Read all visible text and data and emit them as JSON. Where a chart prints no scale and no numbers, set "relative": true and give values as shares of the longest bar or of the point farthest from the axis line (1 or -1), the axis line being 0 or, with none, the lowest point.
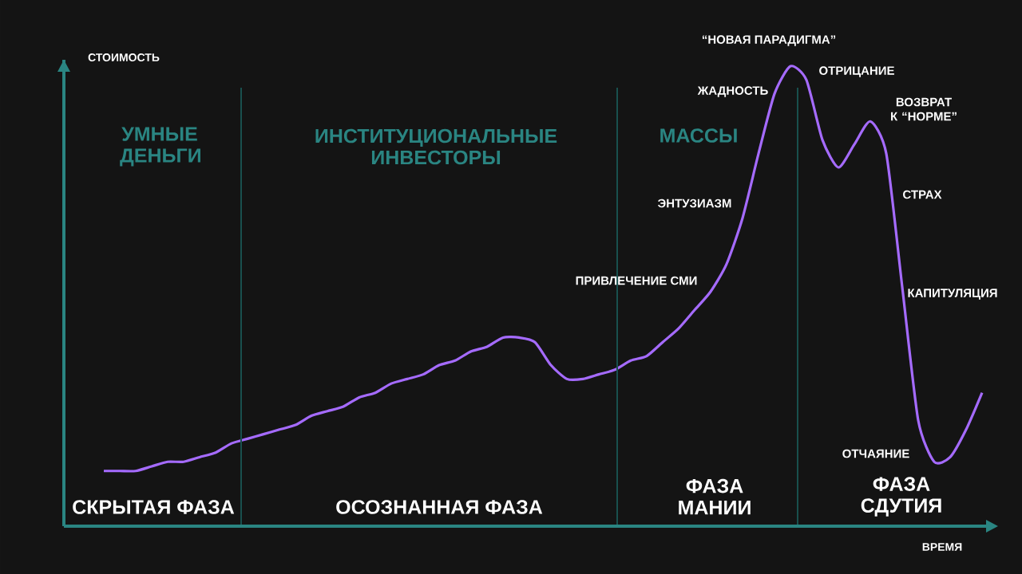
{
  "chart_data": {
    "type": "line",
    "relative": true,
    "categories": [
      null,
      null,
      null,
      null,
      null,
      null,
      null,
      null,
      null,
      null,
      null,
      null,
      null,
      null,
      null,
      null,
      null,
      null,
      null,
      null,
      null,
      null,
      null,
      null,
      null,
      null,
      null,
      null,
      null,
      null,
      null,
      null,
      null,
      null,
      null,
      null,
      null,
      null,
      null,
      null,
      null,
      null,
      null,
      null,
      null,
      null,
      null,
      null,
      null,
      null,
      null,
      null,
      null,
      null,
      null,
      null
    ],
    "series": [
      {
        "color": "#a56bff",
        "values": [
          0.12,
          0.12,
          0.12,
          0.13,
          0.14,
          0.14,
          0.15,
          0.16,
          0.18,
          0.19,
          0.2,
          0.21,
          0.22,
          0.24,
          0.25,
          0.26,
          0.28,
          0.29,
          0.31,
          0.32,
          0.33,
          0.35,
          0.36,
          0.38,
          0.39,
          0.41,
          0.41,
          0.4,
          0.35,
          0.32,
          0.32,
          0.33,
          0.34,
          0.36,
          0.37,
          0.4,
          0.43,
          0.47,
          0.51,
          0.57,
          0.67,
          0.81,
          0.94,
          1,
          0.97,
          0.84,
          0.78,
          0.83,
          0.88,
          0.81,
          0.52,
          0.23,
          0.14,
          0.15,
          0.21,
          0.29
        ]
      }
    ],
    "ylabel": "СТОИМОСТЬ",
    "xlabel": "ВРЕМЯ",
    "annotations": [
      "УМНЫЕ ДЕНЬГИ",
      "ИНСТИТУЦИОНАЛЬНЫЕ ИНВЕСТОРЫ",
      "МАССЫ",
      "СКРЫТАЯ ФАЗА",
      "ОСОЗНАННАЯ ФАЗА",
      "ФАЗА МАНИИ",
      "ФАЗА СДУТИЯ",
      "“НОВАЯ ПАРАДИГМА”",
      "ЖАДНОСТЬ",
      "ОТРИЦАНИЕ",
      "ВОЗВРАТ К “НОРМЕ”",
      "ЭНТУЗИАЗМ",
      "СТРАХ",
      "ПРИВЛЕЧЕНИЕ СМИ",
      "КАПИТУЛЯЦИЯ",
      "ОТЧАЯНИЕ"
    ]
  }
}
